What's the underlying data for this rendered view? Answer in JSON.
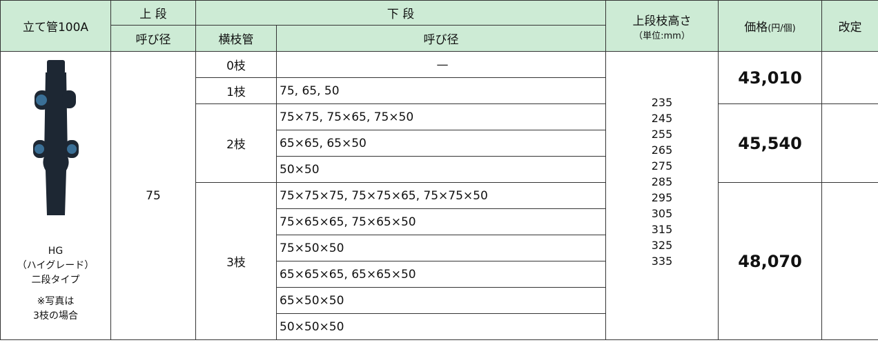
{
  "header": {
    "pipe": "立て管100A",
    "upper": "上 段",
    "upper_diameter": "呼び径",
    "lower": "下 段",
    "lower_branch": "横枝管",
    "lower_diameter": "呼び径",
    "height": "上段枝高さ",
    "height_unit": "（単位:mm）",
    "price": "価格",
    "price_unit": "(円/個)",
    "revision": "改定"
  },
  "product": {
    "model": "HG",
    "grade": "（ハイグレード）",
    "kind": "二段タイプ",
    "note": "※写真は",
    "note_detail": "3枝の場合"
  },
  "upper_diameter": "75",
  "branches": [
    {
      "count": "0枝",
      "diameters": [
        "—"
      ]
    },
    {
      "count": "1枝",
      "diameters": [
        "75, 65, 50"
      ]
    },
    {
      "count": "2枝",
      "diameters": [
        "75×75, 75×65, 75×50",
        "65×65, 65×50",
        "50×50"
      ]
    },
    {
      "count": "3枝",
      "diameters": [
        "75×75×75, 75×75×65, 75×75×50",
        "75×65×65, 75×65×50",
        "75×50×50",
        "65×65×65, 65×65×50",
        "65×50×50",
        "50×50×50"
      ]
    }
  ],
  "heights": [
    "235",
    "245",
    "255",
    "265",
    "275",
    "285",
    "295",
    "305",
    "315",
    "325",
    "335"
  ],
  "prices": [
    "43,010",
    "45,540",
    "48,070"
  ]
}
